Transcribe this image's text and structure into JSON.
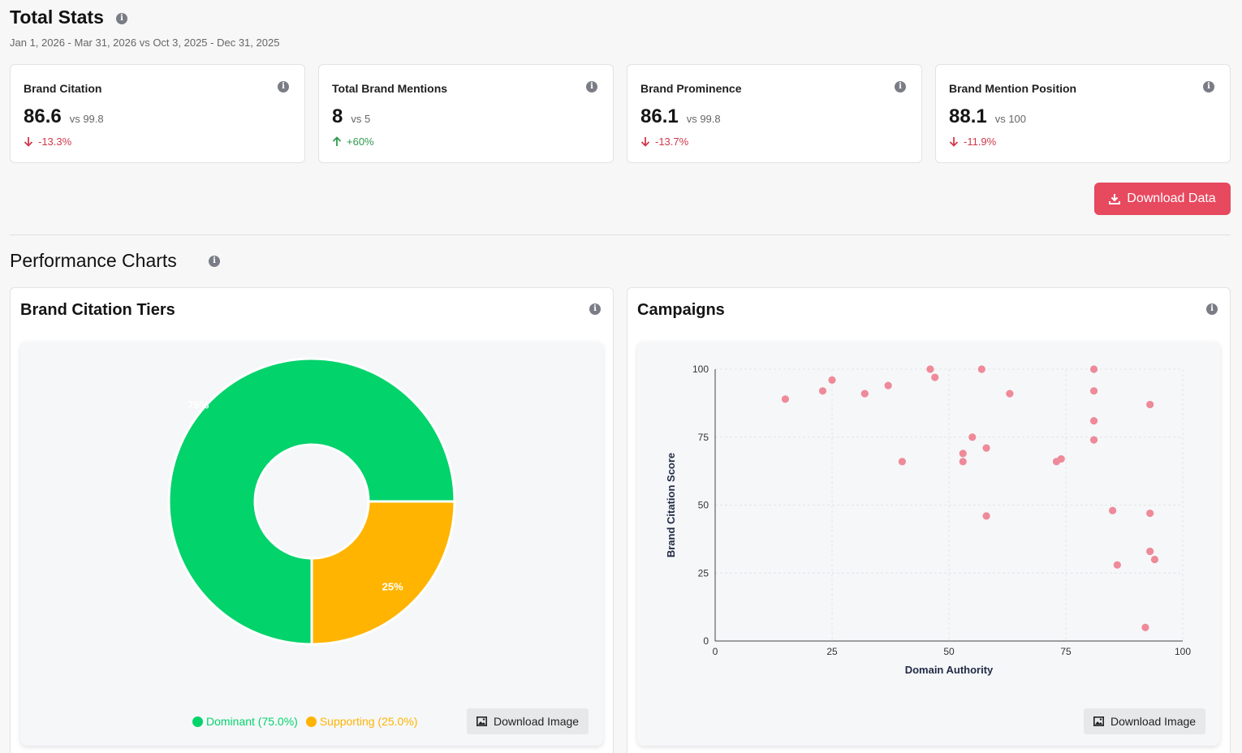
{
  "header": {
    "title": "Total Stats",
    "date_range": "Jan 1, 2026 - Mar 31, 2026 vs Oct 3, 2025 - Dec 31, 2025"
  },
  "cards": [
    {
      "label": "Brand Citation",
      "value": "86.6",
      "vs": "vs 99.8",
      "delta": "-13.3%",
      "direction": "down"
    },
    {
      "label": "Total Brand Mentions",
      "value": "8",
      "vs": "vs 5",
      "delta": "+60%",
      "direction": "up"
    },
    {
      "label": "Brand Prominence",
      "value": "86.1",
      "vs": "vs 99.8",
      "delta": "-13.7%",
      "direction": "down"
    },
    {
      "label": "Brand Mention Position",
      "value": "88.1",
      "vs": "vs 100",
      "delta": "-11.9%",
      "direction": "down"
    }
  ],
  "actions": {
    "download_data": "Download Data",
    "download_image": "Download Image"
  },
  "section": {
    "title": "Performance Charts"
  },
  "colors": {
    "accent": "#e7495e",
    "dominant": "#02d36b",
    "supporting": "#ffb401",
    "points": "#ee8a99"
  },
  "panels": {
    "tiers_title": "Brand Citation Tiers",
    "campaigns_title": "Campaigns"
  },
  "chart_data": [
    {
      "type": "pie",
      "title": "Brand Citation Tiers",
      "slices": [
        {
          "name": "Dominant",
          "value": 75,
          "label": "75%",
          "legend": "Dominant (75.0%)"
        },
        {
          "name": "Supporting",
          "value": 25,
          "label": "25%",
          "legend": "Supporting (25.0%)"
        }
      ],
      "donut": true,
      "legend_position": "bottom"
    },
    {
      "type": "scatter",
      "title": "Campaigns",
      "xlabel": "Domain Authority",
      "ylabel": "Brand Citation Score",
      "xlim": [
        0,
        100
      ],
      "ylim": [
        0,
        100
      ],
      "xticks": [
        0,
        25,
        50,
        75,
        100
      ],
      "yticks": [
        0,
        25,
        50,
        75,
        100
      ],
      "grid": true,
      "points": [
        [
          15,
          89
        ],
        [
          23,
          92
        ],
        [
          25,
          96
        ],
        [
          32,
          91
        ],
        [
          37,
          94
        ],
        [
          40,
          66
        ],
        [
          46,
          100
        ],
        [
          47,
          97
        ],
        [
          53,
          69
        ],
        [
          53,
          66
        ],
        [
          55,
          75
        ],
        [
          57,
          100
        ],
        [
          58,
          71
        ],
        [
          58,
          46
        ],
        [
          63,
          91
        ],
        [
          73,
          66
        ],
        [
          74,
          67
        ],
        [
          81,
          100
        ],
        [
          81,
          92
        ],
        [
          81,
          81
        ],
        [
          81,
          74
        ],
        [
          85,
          48
        ],
        [
          86,
          28
        ],
        [
          92,
          5
        ],
        [
          93,
          47
        ],
        [
          93,
          33
        ],
        [
          93,
          87
        ],
        [
          94,
          30
        ]
      ]
    }
  ]
}
